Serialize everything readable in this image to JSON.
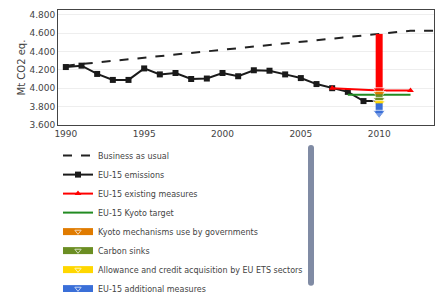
{
  "chart_data": {
    "type": "line",
    "ylabel": "Mt CO2 eq.",
    "xlim": [
      1989.5,
      2013.5
    ],
    "ylim": [
      3.6,
      4.85
    ],
    "xticks": [
      1990,
      1995,
      2000,
      2005,
      2010
    ],
    "yticks": [
      {
        "value": 3.6,
        "label": "3.600"
      },
      {
        "value": 3.8,
        "label": "3.800"
      },
      {
        "value": 4.0,
        "label": "4.000"
      },
      {
        "value": 4.2,
        "label": "4.200"
      },
      {
        "value": 4.4,
        "label": "4.400"
      },
      {
        "value": 4.6,
        "label": "4.600"
      },
      {
        "value": 4.8,
        "label": "4.800"
      }
    ],
    "grid": "y",
    "series": [
      {
        "name": "Business as usual",
        "color": "#222222",
        "line_style": "dashed",
        "x": [
          1990,
          2012,
          2013.5
        ],
        "values": [
          4.245,
          4.625,
          4.625
        ]
      },
      {
        "name": "EU-15 emissions",
        "color": "#1a1a1a",
        "marker": "square",
        "x": [
          1990,
          1991,
          1992,
          1993,
          1994,
          1995,
          1996,
          1997,
          1998,
          1999,
          2000,
          2001,
          2002,
          2003,
          2004,
          2005,
          2006,
          2007,
          2008,
          2009,
          2010
        ],
        "values": [
          4.23,
          4.245,
          4.155,
          4.09,
          4.09,
          4.215,
          4.15,
          4.165,
          4.1,
          4.105,
          4.165,
          4.13,
          4.195,
          4.19,
          4.15,
          4.11,
          4.045,
          4.0,
          3.96,
          3.86,
          3.86
        ]
      },
      {
        "name": "EU-15 existing measures",
        "color": "#ff0000",
        "marker": "triangle-up",
        "x": [
          2007,
          2010,
          2012
        ],
        "values": [
          4.0,
          3.975,
          3.975
        ]
      },
      {
        "name": "EU-15 Kyoto target",
        "color": "#228b22",
        "x": [
          2008,
          2012
        ],
        "values": [
          3.93,
          3.93
        ]
      },
      {
        "type": "arrow",
        "color": "#ff0000",
        "x": [
          2010,
          2010
        ],
        "values": [
          4.59,
          3.975
        ]
      },
      {
        "type": "arrow",
        "name": "Kyoto mechanisms use by governments",
        "color": "#e07b00",
        "x": [
          2010,
          2010
        ],
        "values": [
          3.975,
          3.935
        ]
      },
      {
        "type": "arrow",
        "name": "Carbon sinks",
        "color": "#6b8e23",
        "x": [
          2010,
          2010
        ],
        "values": [
          3.935,
          3.87
        ]
      },
      {
        "type": "arrow",
        "name": "Allowance and credit acquisition by EU ETS sectors",
        "color": "#ffd700",
        "x": [
          2010,
          2010
        ],
        "values": [
          3.87,
          3.835
        ]
      },
      {
        "type": "arrow",
        "name": "EU-15 additional measures",
        "color": "#3a6fd8",
        "x": [
          2010,
          2010
        ],
        "values": [
          3.835,
          3.73
        ]
      }
    ]
  }
}
